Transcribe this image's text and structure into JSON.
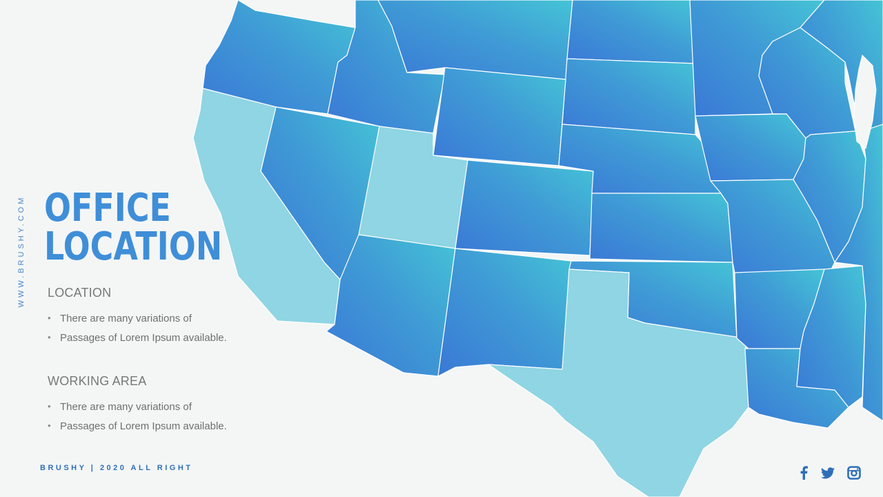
{
  "side_text": "WWW.BRUSHY.COM",
  "title": {
    "line1": "OFFICE",
    "line2": "LOCATION"
  },
  "sections": [
    {
      "heading": "LOCATION",
      "bullets": [
        "There are many variations of",
        "Passages of Lorem Ipsum available."
      ]
    },
    {
      "heading": "WORKING AREA",
      "bullets": [
        "There are many variations of",
        "Passages of Lorem Ipsum available."
      ]
    }
  ],
  "footer": "BRUSHY  |  2020 ALL RIGHT",
  "social": [
    "facebook-icon",
    "twitter-icon",
    "instagram-icon"
  ],
  "colors": {
    "title": "#3f8ed8",
    "highlight_state": "#8fd5e3",
    "state_base": "#3a8ad8",
    "accent": "#2f6fb8"
  },
  "map": {
    "highlighted_states": [
      "California",
      "Utah",
      "Texas"
    ],
    "states": [
      "Oregon",
      "Idaho",
      "Montana",
      "North Dakota",
      "South Dakota",
      "Wyoming",
      "Nevada",
      "California",
      "Utah",
      "Colorado",
      "Nebraska",
      "Kansas",
      "Arizona",
      "New Mexico",
      "Oklahoma",
      "Texas",
      "Minnesota",
      "Iowa",
      "Missouri",
      "Arkansas",
      "Louisiana",
      "Wisconsin",
      "Illinois",
      "Michigan",
      "Mississippi"
    ]
  }
}
